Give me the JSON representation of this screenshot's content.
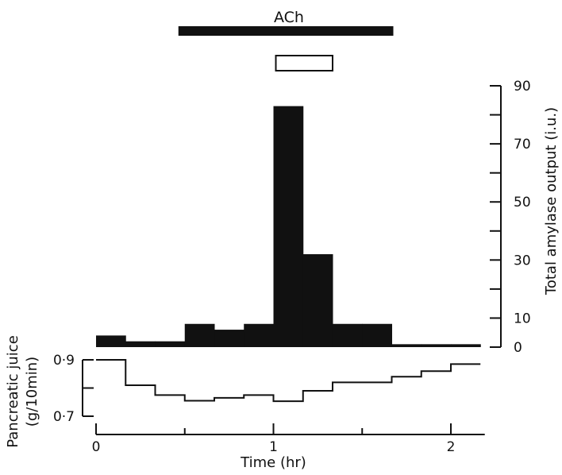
{
  "chart_data": [
    {
      "type": "bar",
      "title": "",
      "ylabel": "Total amylase output (i.u.)",
      "ylim": [
        0,
        90
      ],
      "yticks": [
        0,
        10,
        30,
        50,
        70,
        90
      ],
      "bin_width_hr": 0.1667,
      "bins": [
        {
          "start": 0.0,
          "end": 0.1667,
          "value": 4
        },
        {
          "start": 0.1667,
          "end": 0.3333,
          "value": 2
        },
        {
          "start": 0.3333,
          "end": 0.5,
          "value": 2
        },
        {
          "start": 0.5,
          "end": 0.6667,
          "value": 8
        },
        {
          "start": 0.6667,
          "end": 0.8333,
          "value": 6
        },
        {
          "start": 0.8333,
          "end": 1.0,
          "value": 8
        },
        {
          "start": 1.0,
          "end": 1.1667,
          "value": 83
        },
        {
          "start": 1.1667,
          "end": 1.3333,
          "value": 32
        },
        {
          "start": 1.3333,
          "end": 1.5,
          "value": 8
        },
        {
          "start": 1.5,
          "end": 1.6667,
          "value": 8
        },
        {
          "start": 1.6667,
          "end": 1.8333,
          "value": 1
        },
        {
          "start": 1.8333,
          "end": 2.0,
          "value": 1
        },
        {
          "start": 2.0,
          "end": 2.1667,
          "value": 1
        }
      ]
    },
    {
      "type": "line",
      "ylabel": "Pancreatic juice (g/10min)",
      "ylabel_line1": "Pancreatic juice",
      "ylabel_line2": "(g/10min)",
      "ylim": [
        0.7,
        0.9
      ],
      "ytick_labels": [
        "0·9",
        "0·7"
      ],
      "xlabel": "Time (hr)",
      "xlim": [
        0,
        2.2
      ],
      "xticks": [
        0,
        1,
        2
      ],
      "steps": [
        {
          "start": 0.0,
          "end": 0.1667,
          "value": 0.9
        },
        {
          "start": 0.1667,
          "end": 0.3333,
          "value": 0.81
        },
        {
          "start": 0.3333,
          "end": 0.5,
          "value": 0.775
        },
        {
          "start": 0.5,
          "end": 0.6667,
          "value": 0.755
        },
        {
          "start": 0.6667,
          "end": 0.8333,
          "value": 0.765
        },
        {
          "start": 0.8333,
          "end": 1.0,
          "value": 0.775
        },
        {
          "start": 1.0,
          "end": 1.1667,
          "value": 0.753
        },
        {
          "start": 1.1667,
          "end": 1.3333,
          "value": 0.79
        },
        {
          "start": 1.3333,
          "end": 1.5,
          "value": 0.82
        },
        {
          "start": 1.5,
          "end": 1.6667,
          "value": 0.82
        },
        {
          "start": 1.6667,
          "end": 1.8333,
          "value": 0.84
        },
        {
          "start": 1.8333,
          "end": 2.0,
          "value": 0.86
        },
        {
          "start": 2.0,
          "end": 2.1667,
          "value": 0.885
        }
      ]
    }
  ],
  "annotations": {
    "infusion_label": "ACh",
    "infusion_period_hr": [
      0.5,
      1.6667
    ],
    "open_bar_period_hr": [
      1.0,
      1.3333
    ]
  }
}
